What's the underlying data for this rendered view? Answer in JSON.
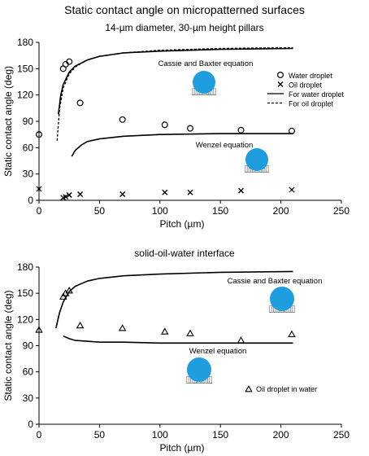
{
  "title": "Static contact angle on micropatterned surfaces",
  "chart_data": [
    {
      "type": "scatter",
      "subtitle": "14-µm diameter, 30-µm height pillars",
      "xlabel": "Pitch (µm)",
      "ylabel": "Static contact angle (deg)",
      "xlim": [
        0,
        250
      ],
      "ylim": [
        0,
        180
      ],
      "xticks": [
        "0",
        "50",
        "100",
        "150",
        "200",
        "250"
      ],
      "yticks": [
        "0",
        "30",
        "60",
        "90",
        "120",
        "150",
        "180"
      ],
      "grid": false,
      "legend_position": "right",
      "series": [
        {
          "name": "Water droplet",
          "kind": "points",
          "marker": "circle",
          "x": [
            0,
            20,
            22,
            25,
            34,
            69,
            104,
            125,
            167,
            209
          ],
          "y": [
            75,
            150,
            155,
            158,
            111,
            92,
            86,
            82,
            80,
            79
          ]
        },
        {
          "name": "Oil droplet",
          "kind": "points",
          "marker": "cross",
          "x": [
            0,
            20,
            22,
            25,
            34,
            69,
            104,
            125,
            167,
            209
          ],
          "y": [
            13,
            3,
            4,
            6,
            7,
            7,
            9,
            9,
            11,
            12
          ]
        },
        {
          "name": "For water droplet",
          "kind": "line",
          "dash": "solid",
          "x": [
            16,
            18,
            20,
            25,
            30,
            40,
            50,
            70,
            100,
            150,
            210
          ],
          "y": [
            98,
            120,
            132,
            146,
            153,
            160,
            164,
            168,
            170,
            172,
            173
          ]
        },
        {
          "name": "For oil droplet",
          "kind": "line",
          "dash": "dashed",
          "x": [
            15,
            17,
            20,
            25,
            30,
            40,
            50,
            70,
            100,
            150,
            210
          ],
          "y": [
            68,
            105,
            128,
            144,
            152,
            160,
            164,
            168,
            171,
            173,
            174
          ]
        },
        {
          "kind": "line",
          "dash": "solid",
          "x": [
            27,
            30,
            35,
            40,
            50,
            70,
            100,
            150,
            210
          ],
          "y": [
            50,
            57,
            63,
            67,
            70,
            73,
            75,
            76,
            76
          ]
        }
      ],
      "annotations": [
        "Cassie and Baxter equation",
        "Wenzel equation"
      ]
    },
    {
      "type": "scatter",
      "subtitle": "solid-oil-water interface",
      "xlabel": "Pitch (µm)",
      "ylabel": "Static contact angle (deg)",
      "xlim": [
        0,
        250
      ],
      "ylim": [
        0,
        180
      ],
      "xticks": [
        "0",
        "50",
        "100",
        "150",
        "200",
        "250"
      ],
      "yticks": [
        "0",
        "30",
        "60",
        "90",
        "120",
        "150",
        "180"
      ],
      "grid": false,
      "legend_position": "bottom-right",
      "series": [
        {
          "name": "Oil droplet in water",
          "kind": "points",
          "marker": "triangle",
          "x": [
            0,
            20,
            22,
            25,
            34,
            69,
            104,
            125,
            167,
            209
          ],
          "y": [
            108,
            146,
            150,
            153,
            113,
            110,
            106,
            104,
            96,
            103
          ]
        },
        {
          "kind": "line",
          "dash": "solid",
          "x": [
            14,
            17,
            20,
            25,
            30,
            40,
            50,
            70,
            100,
            150,
            210
          ],
          "y": [
            110,
            128,
            140,
            152,
            158,
            164,
            167,
            170,
            172,
            174,
            175
          ]
        },
        {
          "kind": "line",
          "dash": "solid",
          "x": [
            20,
            25,
            30,
            40,
            50,
            70,
            100,
            150,
            210
          ],
          "y": [
            101,
            98,
            96,
            95,
            94,
            94,
            93,
            93,
            93
          ]
        }
      ],
      "annotations": [
        "Cassie and Baxter equation",
        "Wenzel equation"
      ]
    }
  ],
  "colors": {
    "droplet": "#1e9ede",
    "pillar": "#888888",
    "ink": "#000000"
  }
}
